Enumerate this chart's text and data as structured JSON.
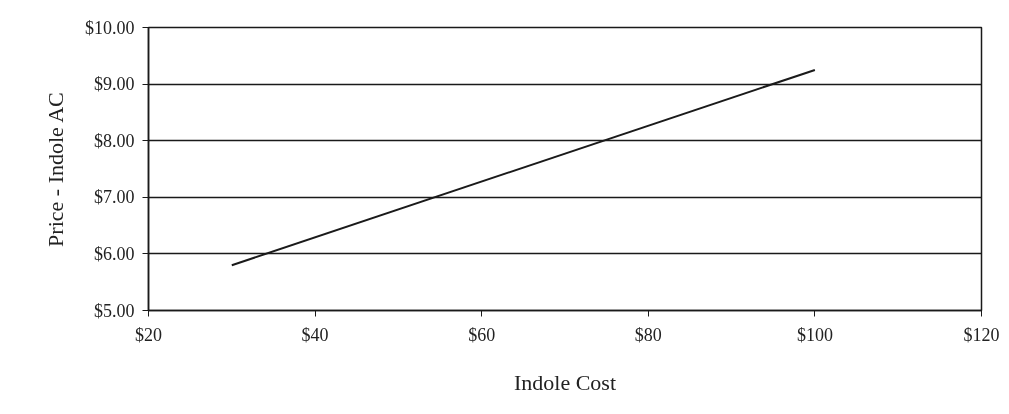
{
  "chart_data": {
    "type": "line",
    "xlabel": "Indole Cost",
    "ylabel": "Price - Indole AC",
    "x": [
      30,
      100
    ],
    "series": [
      {
        "color": "#1a1a1a",
        "values": [
          5.8,
          9.25
        ]
      }
    ],
    "xlim": [
      20,
      120
    ],
    "ylim": [
      5,
      10
    ],
    "xticks": [
      {
        "value": 20,
        "label": "$20"
      },
      {
        "value": 40,
        "label": "$40"
      },
      {
        "value": 60,
        "label": "$60"
      },
      {
        "value": 80,
        "label": "$80"
      },
      {
        "value": 100,
        "label": "$100"
      },
      {
        "value": 120,
        "label": "$120"
      }
    ],
    "yticks": [
      {
        "value": 5,
        "label": "$5.00"
      },
      {
        "value": 6,
        "label": "$6.00"
      },
      {
        "value": 7,
        "label": "$7.00"
      },
      {
        "value": 8,
        "label": "$8.00"
      },
      {
        "value": 9,
        "label": "$9.00"
      },
      {
        "value": 10,
        "label": "$10.00"
      }
    ],
    "grid": "y",
    "line_style": "solid"
  }
}
